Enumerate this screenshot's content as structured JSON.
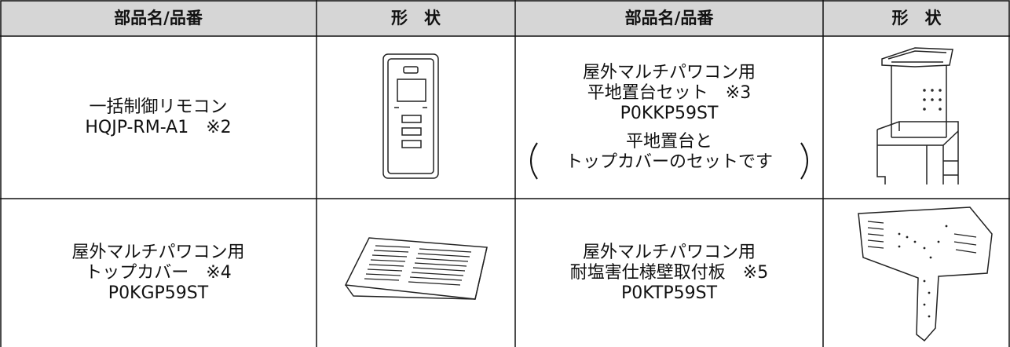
{
  "table": {
    "header": [
      "部品名/品番",
      "形　状",
      "部品名/品番",
      "形　状"
    ],
    "rows": [
      {
        "part1": [
          "一括制御リモコン",
          "HQJP-RM-A1　※2"
        ],
        "part2": [
          "屋外マルチパワコン用",
          "平地置台セット　※3",
          "P0KKP59ST"
        ],
        "note": [
          "平地置台と",
          "トップカバーのセットです"
        ]
      },
      {
        "part1": [
          "屋外マルチパワコン用",
          "トップカバー　※4",
          "P0KGP59ST"
        ],
        "part2": [
          "屋外マルチパワコン用",
          "耐塩害仕様壁取付板　※5",
          "P0KTP59ST"
        ]
      }
    ]
  }
}
